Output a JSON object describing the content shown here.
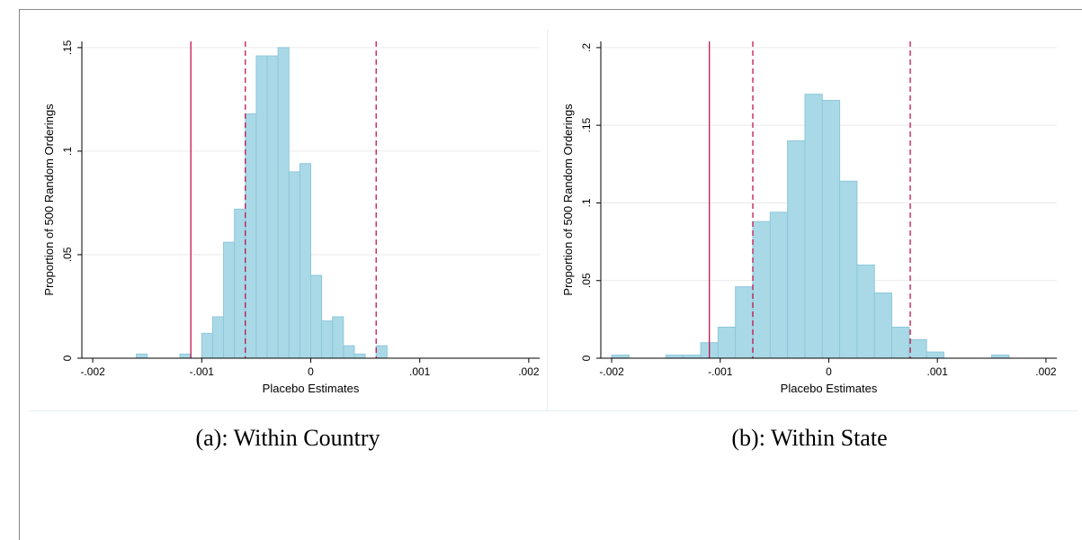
{
  "colors": {
    "bar_fill": "#a9d9e7",
    "bar_stroke": "#8ec7da",
    "vline": "#c00040",
    "grid": "#eaeaea",
    "axis": "#000000"
  },
  "chart_data": [
    {
      "type": "bar",
      "caption": "(a): Within Country",
      "xlabel": "Placebo Estimates",
      "ylabel": "Proportion of 500 Random Orderings",
      "xlim": [
        -0.0021,
        0.0021
      ],
      "ylim": [
        0,
        0.153
      ],
      "xticks": [
        -0.002,
        -0.001,
        0,
        0.001,
        0.002
      ],
      "xtick_labels": [
        "-.002",
        "-.001",
        "0",
        ".001",
        ".002"
      ],
      "yticks": [
        0,
        0.05,
        0.1,
        0.15
      ],
      "ytick_labels": [
        "0",
        ".05",
        ".1",
        ".15"
      ],
      "grid": true,
      "bin_width": 0.0001,
      "bars": [
        {
          "x0": -0.0016,
          "value": 0.002
        },
        {
          "x0": -0.0012,
          "value": 0.002
        },
        {
          "x0": -0.001,
          "value": 0.012
        },
        {
          "x0": -0.0009,
          "value": 0.02
        },
        {
          "x0": -0.0008,
          "value": 0.056
        },
        {
          "x0": -0.0007,
          "value": 0.072
        },
        {
          "x0": -0.0006,
          "value": 0.118
        },
        {
          "x0": -0.0005,
          "value": 0.146
        },
        {
          "x0": -0.0004,
          "value": 0.146
        },
        {
          "x0": -0.0003,
          "value": 0.15
        },
        {
          "x0": -0.0002,
          "value": 0.09
        },
        {
          "x0": -0.0001,
          "value": 0.094
        },
        {
          "x0": 0.0,
          "value": 0.04
        },
        {
          "x0": 0.0001,
          "value": 0.018
        },
        {
          "x0": 0.0002,
          "value": 0.02
        },
        {
          "x0": 0.0003,
          "value": 0.006
        },
        {
          "x0": 0.0004,
          "value": 0.002
        },
        {
          "x0": 0.0006,
          "value": 0.006
        }
      ],
      "solid_line": -0.0011,
      "dashed_lines": [
        -0.0006,
        0.0006
      ]
    },
    {
      "type": "bar",
      "caption": "(b): Within State",
      "xlabel": "Placebo Estimates",
      "ylabel": "Proportion of 500 Random Orderings",
      "xlim": [
        -0.0021,
        0.0021
      ],
      "ylim": [
        0,
        0.204
      ],
      "xticks": [
        -0.002,
        -0.001,
        0,
        0.001,
        0.002
      ],
      "xtick_labels": [
        "-.002",
        "-.001",
        "0",
        ".001",
        ".002"
      ],
      "yticks": [
        0,
        0.05,
        0.1,
        0.15,
        0.2
      ],
      "ytick_labels": [
        "0",
        ".05",
        ".1",
        ".15",
        ".2"
      ],
      "grid": true,
      "bin_width": 0.00016,
      "bars": [
        {
          "x0": -0.002,
          "value": 0.002
        },
        {
          "x0": -0.0015,
          "value": 0.002
        },
        {
          "x0": -0.00134,
          "value": 0.002
        },
        {
          "x0": -0.00118,
          "value": 0.01
        },
        {
          "x0": -0.00102,
          "value": 0.02
        },
        {
          "x0": -0.00086,
          "value": 0.046
        },
        {
          "x0": -0.0007,
          "value": 0.088
        },
        {
          "x0": -0.00054,
          "value": 0.094
        },
        {
          "x0": -0.00038,
          "value": 0.14
        },
        {
          "x0": -0.00022,
          "value": 0.17
        },
        {
          "x0": -6e-05,
          "value": 0.166
        },
        {
          "x0": 0.0001,
          "value": 0.114
        },
        {
          "x0": 0.00026,
          "value": 0.06
        },
        {
          "x0": 0.00042,
          "value": 0.042
        },
        {
          "x0": 0.00058,
          "value": 0.02
        },
        {
          "x0": 0.00074,
          "value": 0.012
        },
        {
          "x0": 0.0009,
          "value": 0.004
        },
        {
          "x0": 0.0015,
          "value": 0.002
        }
      ],
      "solid_line": -0.0011,
      "dashed_lines": [
        -0.0007,
        0.00075
      ]
    }
  ]
}
